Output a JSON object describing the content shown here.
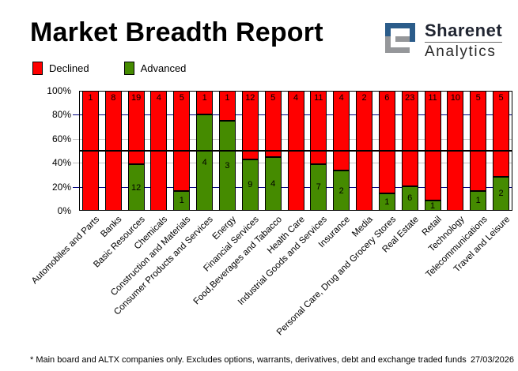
{
  "header": {
    "title": "Market Breadth Report"
  },
  "logo": {
    "brand": "Sharenet",
    "sub": "Analytics",
    "blue": "#2b5c8a",
    "gray": "#95979a"
  },
  "chart_data": {
    "type": "bar",
    "stacked": true,
    "percent_stacked": true,
    "title": "Market Breadth Report",
    "legend_position": "top-left",
    "ylim": [
      0,
      100
    ],
    "y_ticks": [
      "100%",
      "80%",
      "60%",
      "40%",
      "20%",
      "0%"
    ],
    "categories": [
      "Automobiles and Parts",
      "Banks",
      "Basic Resources",
      "Chemicals",
      "Construction and Materials",
      "Consumer Products and Services",
      "Energy",
      "Financial Services",
      "Food,Beverages and Tabacco",
      "Health Care",
      "Industrial Goods and Services",
      "Insurance",
      "Media",
      "Personal Care, Drug and Grocery Stores",
      "Real Estate",
      "Retail",
      "Technology",
      "Telecommunications",
      "Travel and Leisure"
    ],
    "series": [
      {
        "name": "Declined",
        "color": "#ff0000",
        "values": [
          1,
          8,
          19,
          4,
          5,
          1,
          1,
          12,
          5,
          4,
          11,
          4,
          2,
          6,
          23,
          11,
          10,
          5,
          5
        ]
      },
      {
        "name": "Advanced",
        "color": "#458b00",
        "values": [
          0,
          0,
          12,
          0,
          1,
          4,
          3,
          9,
          4,
          0,
          7,
          2,
          0,
          1,
          6,
          1,
          0,
          1,
          2
        ]
      }
    ],
    "gridlines": [
      {
        "y": 80,
        "color": "#000080"
      },
      {
        "y": 60,
        "color": "#c0c0c0"
      },
      {
        "y": 40,
        "color": "#c0c0c0"
      },
      {
        "y": 20,
        "color": "#000080"
      }
    ],
    "midline": {
      "y": 50,
      "color": "#000000"
    }
  },
  "footer": {
    "note": "* Main board and ALTX companies only. Excludes options, warrants, derivatives, debt and exchange traded funds",
    "date": "27/03/2026"
  }
}
